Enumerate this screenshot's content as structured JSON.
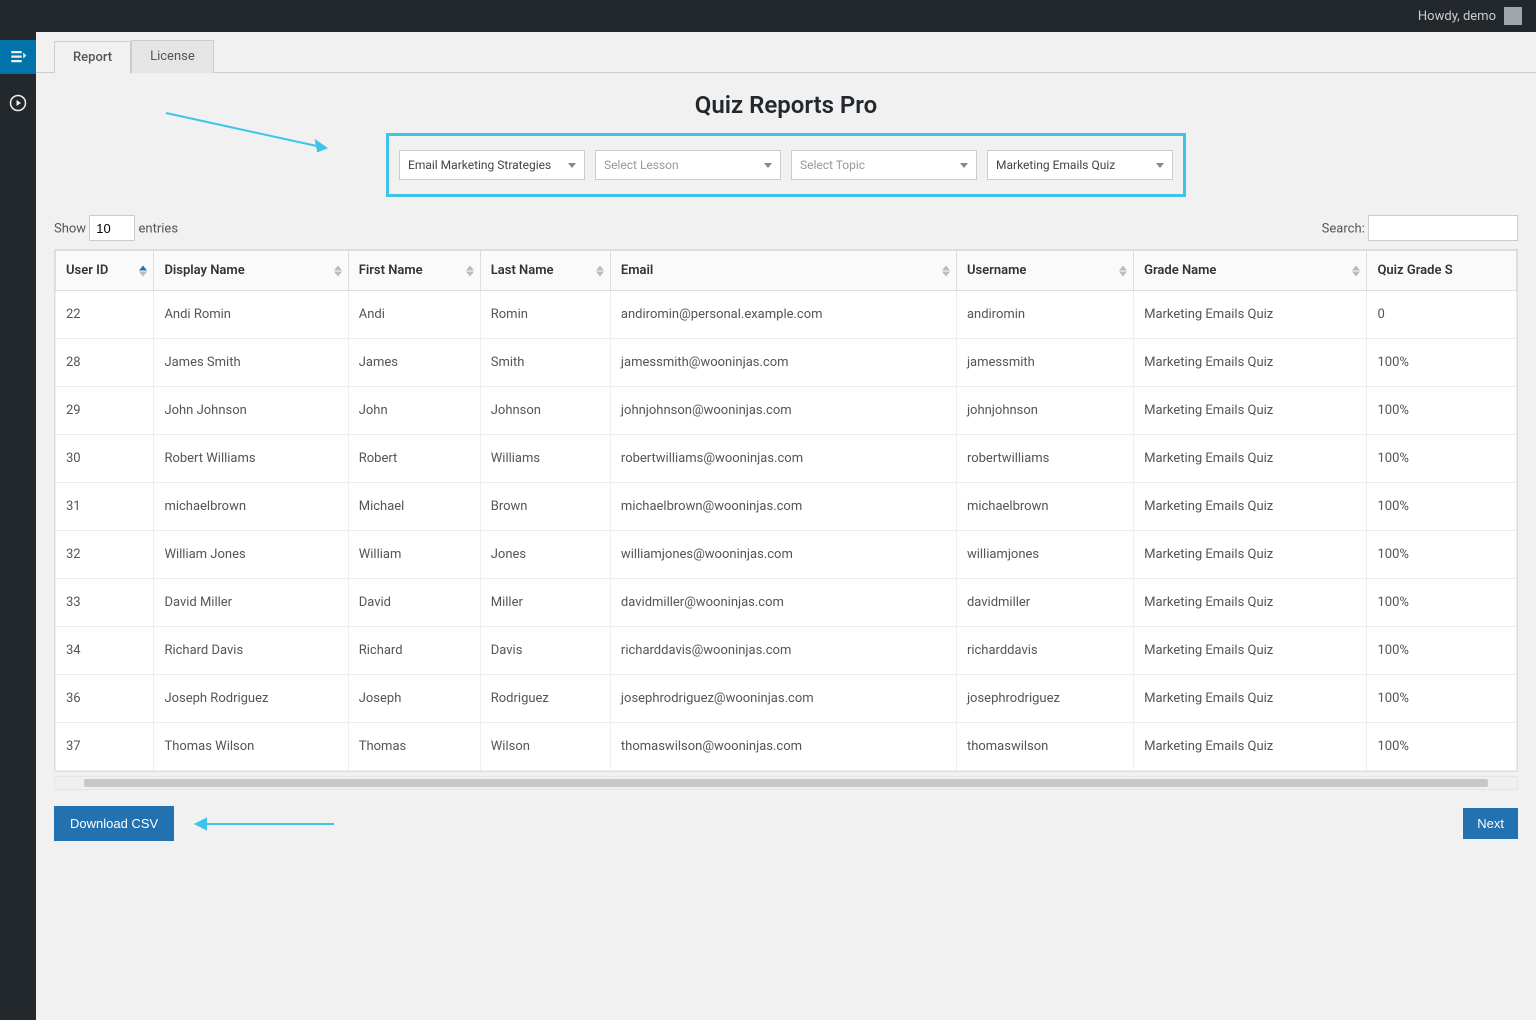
{
  "topbar": {
    "greeting": "Howdy, demo"
  },
  "tabs": {
    "report": "Report",
    "license": "License"
  },
  "page_title": "Quiz Reports Pro",
  "filters": {
    "course": "Email Marketing Strategies",
    "lesson_placeholder": "Select Lesson",
    "topic_placeholder": "Select Topic",
    "quiz": "Marketing Emails Quiz",
    "highlight_color": "#3fc3e8"
  },
  "entries": {
    "show_label": "Show",
    "entries_label": "entries",
    "value": "10"
  },
  "search": {
    "label": "Search:"
  },
  "columns": [
    "User ID",
    "Display Name",
    "First Name",
    "Last Name",
    "Email",
    "Username",
    "Grade Name",
    "Quiz Grade S"
  ],
  "rows": [
    {
      "user_id": "22",
      "display_name": "Andi Romin",
      "first_name": "Andi",
      "last_name": "Romin",
      "email": "andiromin@personal.example.com",
      "username": "andiromin",
      "grade_name": "Marketing Emails Quiz",
      "grade_score": "0"
    },
    {
      "user_id": "28",
      "display_name": "James Smith",
      "first_name": "James",
      "last_name": "Smith",
      "email": "jamessmith@wooninjas.com",
      "username": "jamessmith",
      "grade_name": "Marketing Emails Quiz",
      "grade_score": "100%"
    },
    {
      "user_id": "29",
      "display_name": "John Johnson",
      "first_name": "John",
      "last_name": "Johnson",
      "email": "johnjohnson@wooninjas.com",
      "username": "johnjohnson",
      "grade_name": "Marketing Emails Quiz",
      "grade_score": "100%"
    },
    {
      "user_id": "30",
      "display_name": "Robert Williams",
      "first_name": "Robert",
      "last_name": "Williams",
      "email": "robertwilliams@wooninjas.com",
      "username": "robertwilliams",
      "grade_name": "Marketing Emails Quiz",
      "grade_score": "100%"
    },
    {
      "user_id": "31",
      "display_name": "michaelbrown",
      "first_name": "Michael",
      "last_name": "Brown",
      "email": "michaelbrown@wooninjas.com",
      "username": "michaelbrown",
      "grade_name": "Marketing Emails Quiz",
      "grade_score": "100%"
    },
    {
      "user_id": "32",
      "display_name": "William Jones",
      "first_name": "William",
      "last_name": "Jones",
      "email": "williamjones@wooninjas.com",
      "username": "williamjones",
      "grade_name": "Marketing Emails Quiz",
      "grade_score": "100%"
    },
    {
      "user_id": "33",
      "display_name": "David Miller",
      "first_name": "David",
      "last_name": "Miller",
      "email": "davidmiller@wooninjas.com",
      "username": "davidmiller",
      "grade_name": "Marketing Emails Quiz",
      "grade_score": "100%"
    },
    {
      "user_id": "34",
      "display_name": "Richard Davis",
      "first_name": "Richard",
      "last_name": "Davis",
      "email": "richarddavis@wooninjas.com",
      "username": "richarddavis",
      "grade_name": "Marketing Emails Quiz",
      "grade_score": "100%"
    },
    {
      "user_id": "36",
      "display_name": "Joseph Rodriguez",
      "first_name": "Joseph",
      "last_name": "Rodriguez",
      "email": "josephrodriguez@wooninjas.com",
      "username": "josephrodriguez",
      "grade_name": "Marketing Emails Quiz",
      "grade_score": "100%"
    },
    {
      "user_id": "37",
      "display_name": "Thomas Wilson",
      "first_name": "Thomas",
      "last_name": "Wilson",
      "email": "thomaswilson@wooninjas.com",
      "username": "thomaswilson",
      "grade_name": "Marketing Emails Quiz",
      "grade_score": "100%"
    }
  ],
  "buttons": {
    "download_csv": "Download CSV",
    "next": "Next"
  },
  "colors": {
    "accent": "#2271b1",
    "highlight": "#3fc3e8",
    "topbar": "#23282d",
    "bg": "#f1f1f1"
  }
}
